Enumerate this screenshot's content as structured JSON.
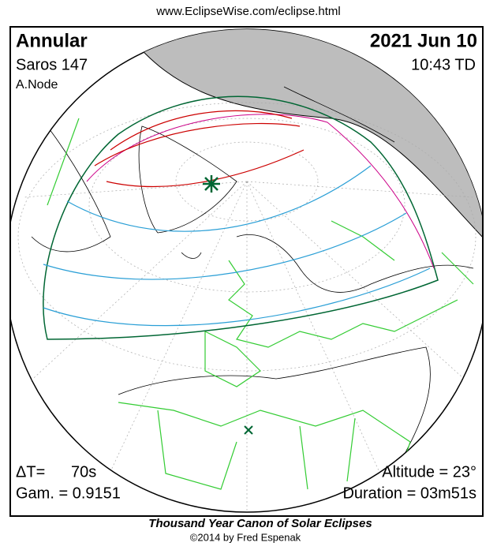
{
  "header": {
    "url": "www.EclipseWise.com/eclipse.html"
  },
  "map": {
    "eclipse_type": "Annular",
    "saros": "Saros 147",
    "node": "A.Node",
    "date": "2021 Jun 10",
    "time": "10:43 TD",
    "delta_t_label": "ΔT=",
    "delta_t_value": "70s",
    "gamma": "Gam. = 0.9151",
    "altitude": "Altitude = 23°",
    "duration": "Duration = 03m51s"
  },
  "footer": {
    "title": "Thousand Year Canon of Solar Eclipses",
    "credit": "©2014 by Fred Espenak"
  }
}
